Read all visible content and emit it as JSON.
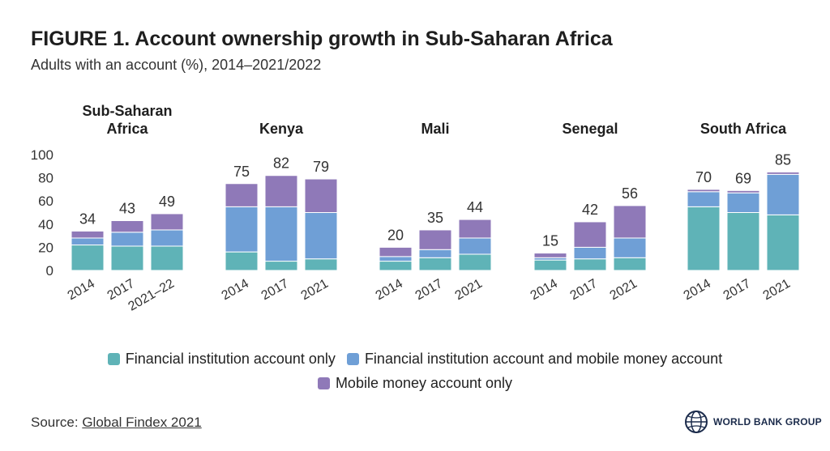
{
  "title": "FIGURE 1. Account ownership growth in Sub-Saharan Africa",
  "subtitle": "Adults with an account (%), 2014–2021/2022",
  "source_label": "Source: ",
  "source_link": "Global Findex 2021",
  "logo_text": "WORLD BANK GROUP",
  "colors": {
    "financial_only": "#5fb3b7",
    "both": "#6f9fd6",
    "mobile_only": "#8f79b8"
  },
  "chart_data": {
    "type": "bar",
    "stacked": true,
    "y_ticks": [
      0,
      20,
      40,
      60,
      80,
      100
    ],
    "ylim": [
      0,
      100
    ],
    "legend": [
      {
        "key": "financial_only",
        "label": "Financial institution account only"
      },
      {
        "key": "both",
        "label": "Financial institution account and mobile money account"
      },
      {
        "key": "mobile_only",
        "label": "Mobile money account only"
      }
    ],
    "legend_placement": "bottom",
    "groups": [
      {
        "name_lines": [
          "Sub-Saharan",
          "Africa"
        ],
        "bars": [
          {
            "year": "2014",
            "financial_only": 22,
            "both": 6,
            "mobile_only": 6,
            "total": "34"
          },
          {
            "year": "2017",
            "financial_only": 21,
            "both": 12,
            "mobile_only": 10,
            "total": "43"
          },
          {
            "year": "2021–22",
            "financial_only": 21,
            "both": 14,
            "mobile_only": 14,
            "total": "49"
          }
        ]
      },
      {
        "name_lines": [
          "Kenya"
        ],
        "bars": [
          {
            "year": "2014",
            "financial_only": 16,
            "both": 39,
            "mobile_only": 20,
            "total": "75"
          },
          {
            "year": "2017",
            "financial_only": 8,
            "both": 47,
            "mobile_only": 27,
            "total": "82"
          },
          {
            "year": "2021",
            "financial_only": 10,
            "both": 40,
            "mobile_only": 29,
            "total": "79"
          }
        ]
      },
      {
        "name_lines": [
          "Mali"
        ],
        "bars": [
          {
            "year": "2014",
            "financial_only": 8,
            "both": 4,
            "mobile_only": 8,
            "total": "20"
          },
          {
            "year": "2017",
            "financial_only": 11,
            "both": 7,
            "mobile_only": 17,
            "total": "35"
          },
          {
            "year": "2021",
            "financial_only": 14,
            "both": 14,
            "mobile_only": 16,
            "total": "44"
          }
        ]
      },
      {
        "name_lines": [
          "Senegal"
        ],
        "bars": [
          {
            "year": "2014",
            "financial_only": 9,
            "both": 2,
            "mobile_only": 4,
            "total": "15"
          },
          {
            "year": "2017",
            "financial_only": 10,
            "both": 10,
            "mobile_only": 22,
            "total": "42"
          },
          {
            "year": "2021",
            "financial_only": 11,
            "both": 17,
            "mobile_only": 28,
            "total": "56"
          }
        ]
      },
      {
        "name_lines": [
          "South Africa"
        ],
        "bars": [
          {
            "year": "2014",
            "financial_only": 55,
            "both": 13,
            "mobile_only": 2,
            "total": "70"
          },
          {
            "year": "2017",
            "financial_only": 50,
            "both": 17,
            "mobile_only": 2,
            "total": "69"
          },
          {
            "year": "2021",
            "financial_only": 48,
            "both": 35,
            "mobile_only": 2,
            "total": "85"
          }
        ]
      }
    ]
  }
}
